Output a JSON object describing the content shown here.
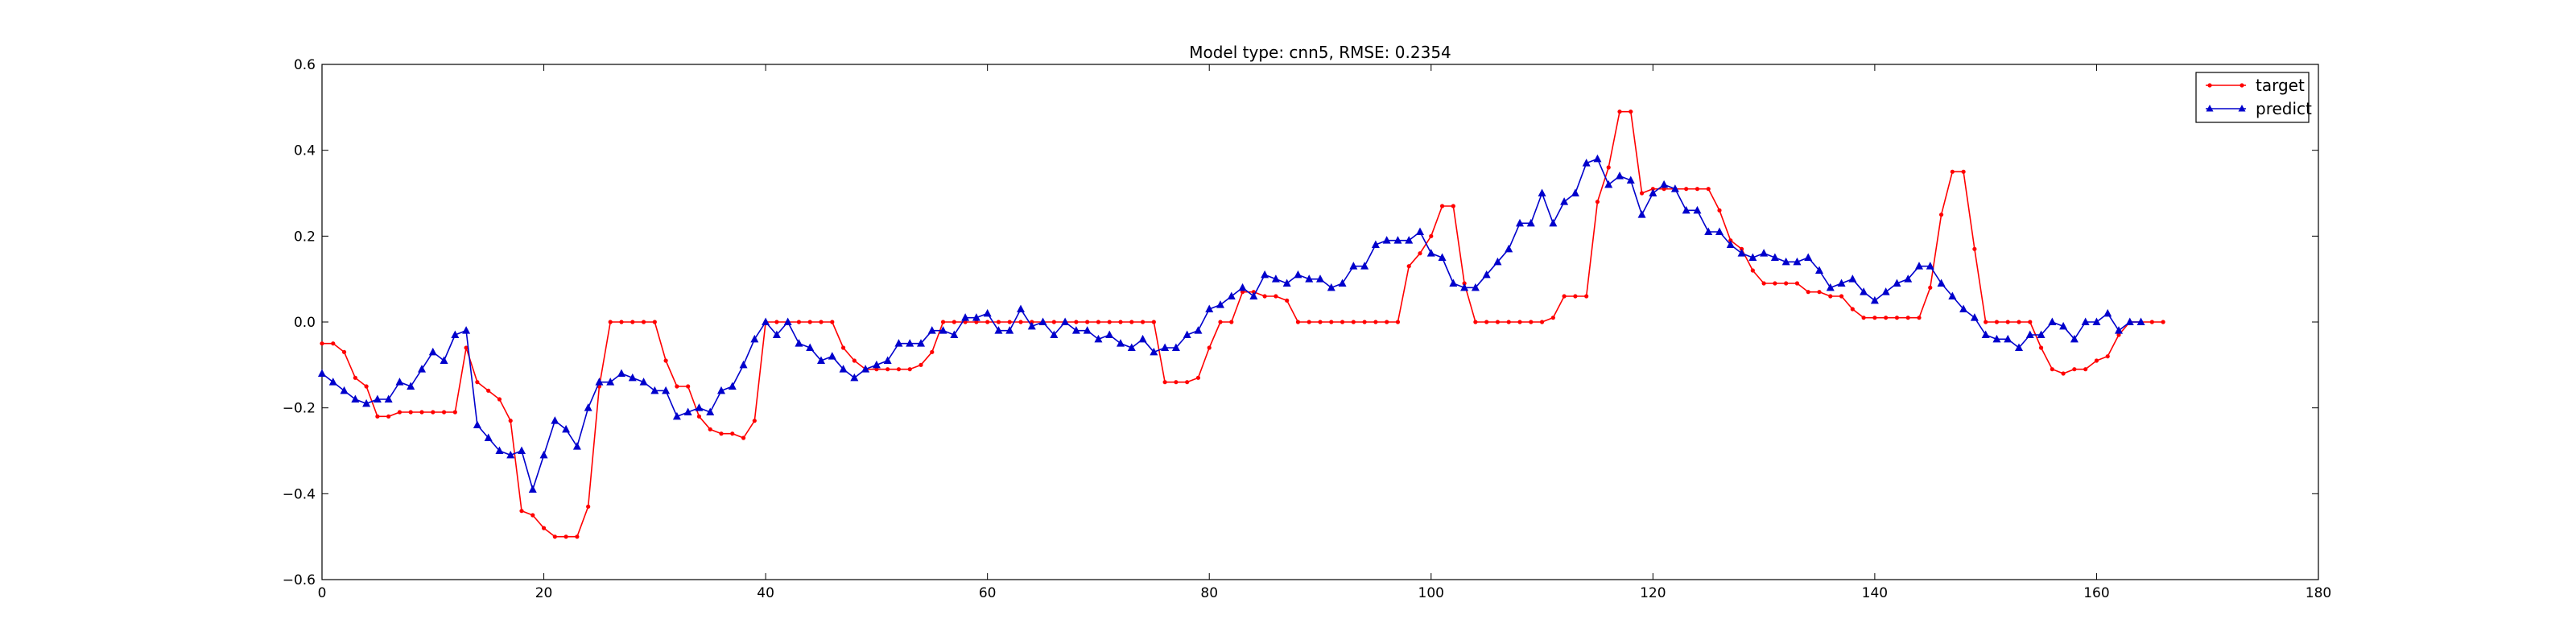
{
  "chart_data": {
    "type": "line",
    "title": "Model type: cnn5, RMSE: 0.2354",
    "xlabel": "",
    "ylabel": "",
    "xlim": [
      0,
      180
    ],
    "ylim": [
      -0.6,
      0.6
    ],
    "xticks": [
      0,
      20,
      40,
      60,
      80,
      100,
      120,
      140,
      160,
      180
    ],
    "yticks": [
      -0.6,
      -0.4,
      -0.2,
      0.0,
      0.2,
      0.4,
      0.6
    ],
    "xtick_labels": [
      "0",
      "20",
      "40",
      "60",
      "80",
      "100",
      "120",
      "140",
      "160",
      "180"
    ],
    "ytick_labels": [
      "−0.6",
      "−0.4",
      "−0.2",
      "0.0",
      "0.2",
      "0.4",
      "0.6"
    ],
    "grid": false,
    "legend_position": "top-right",
    "series": [
      {
        "name": "target",
        "color": "#ff0000",
        "marker": "dot",
        "values": [
          -0.05,
          -0.05,
          -0.07,
          -0.13,
          -0.15,
          -0.22,
          -0.22,
          -0.21,
          -0.21,
          -0.21,
          -0.21,
          -0.21,
          -0.21,
          -0.06,
          -0.14,
          -0.16,
          -0.18,
          -0.23,
          -0.44,
          -0.45,
          -0.48,
          -0.5,
          -0.5,
          -0.5,
          -0.43,
          -0.15,
          0.0,
          0.0,
          0.0,
          0.0,
          0.0,
          -0.09,
          -0.15,
          -0.15,
          -0.22,
          -0.25,
          -0.26,
          -0.26,
          -0.27,
          -0.23,
          0.0,
          0.0,
          0.0,
          0.0,
          0.0,
          0.0,
          0.0,
          -0.06,
          -0.09,
          -0.11,
          -0.11,
          -0.11,
          -0.11,
          -0.11,
          -0.1,
          -0.07,
          0.0,
          0.0,
          0.0,
          0.0,
          0.0,
          0.0,
          0.0,
          0.0,
          0.0,
          0.0,
          0.0,
          0.0,
          0.0,
          0.0,
          0.0,
          0.0,
          0.0,
          0.0,
          0.0,
          0.0,
          -0.14,
          -0.14,
          -0.14,
          -0.13,
          -0.06,
          0.0,
          0.0,
          0.07,
          0.07,
          0.06,
          0.06,
          0.05,
          0.0,
          0.0,
          0.0,
          0.0,
          0.0,
          0.0,
          0.0,
          0.0,
          0.0,
          0.0,
          0.13,
          0.16,
          0.2,
          0.27,
          0.27,
          0.09,
          0.0,
          0.0,
          0.0,
          0.0,
          0.0,
          0.0,
          0.0,
          0.01,
          0.06,
          0.06,
          0.06,
          0.28,
          0.36,
          0.49,
          0.49,
          0.3,
          0.31,
          0.31,
          0.31,
          0.31,
          0.31,
          0.31,
          0.26,
          0.19,
          0.17,
          0.12,
          0.09,
          0.09,
          0.09,
          0.09,
          0.07,
          0.07,
          0.06,
          0.06,
          0.03,
          0.01,
          0.01,
          0.01,
          0.01,
          0.01,
          0.01,
          0.08,
          0.25,
          0.35,
          0.35,
          0.17,
          0.0,
          0.0,
          0.0,
          0.0,
          0.0,
          -0.06,
          -0.11,
          -0.12,
          -0.11,
          -0.11,
          -0.09,
          -0.08,
          -0.03,
          0.0,
          0.0,
          0.0,
          0.0
        ]
      },
      {
        "name": "predict",
        "color": "#0000cc",
        "marker": "triangle",
        "values": [
          -0.12,
          -0.14,
          -0.16,
          -0.18,
          -0.19,
          -0.18,
          -0.18,
          -0.14,
          -0.15,
          -0.11,
          -0.07,
          -0.09,
          -0.03,
          -0.02,
          -0.24,
          -0.27,
          -0.3,
          -0.31,
          -0.3,
          -0.39,
          -0.31,
          -0.23,
          -0.25,
          -0.29,
          -0.2,
          -0.14,
          -0.14,
          -0.12,
          -0.13,
          -0.14,
          -0.16,
          -0.16,
          -0.22,
          -0.21,
          -0.2,
          -0.21,
          -0.16,
          -0.15,
          -0.1,
          -0.04,
          0.0,
          -0.03,
          0.0,
          -0.05,
          -0.06,
          -0.09,
          -0.08,
          -0.11,
          -0.13,
          -0.11,
          -0.1,
          -0.09,
          -0.05,
          -0.05,
          -0.05,
          -0.02,
          -0.02,
          -0.03,
          0.01,
          0.01,
          0.02,
          -0.02,
          -0.02,
          0.03,
          -0.01,
          0.0,
          -0.03,
          0.0,
          -0.02,
          -0.02,
          -0.04,
          -0.03,
          -0.05,
          -0.06,
          -0.04,
          -0.07,
          -0.06,
          -0.06,
          -0.03,
          -0.02,
          0.03,
          0.04,
          0.06,
          0.08,
          0.06,
          0.11,
          0.1,
          0.09,
          0.11,
          0.1,
          0.1,
          0.08,
          0.09,
          0.13,
          0.13,
          0.18,
          0.19,
          0.19,
          0.19,
          0.21,
          0.16,
          0.15,
          0.09,
          0.08,
          0.08,
          0.11,
          0.14,
          0.17,
          0.23,
          0.23,
          0.3,
          0.23,
          0.28,
          0.3,
          0.37,
          0.38,
          0.32,
          0.34,
          0.33,
          0.25,
          0.3,
          0.32,
          0.31,
          0.26,
          0.26,
          0.21,
          0.21,
          0.18,
          0.16,
          0.15,
          0.16,
          0.15,
          0.14,
          0.14,
          0.15,
          0.12,
          0.08,
          0.09,
          0.1,
          0.07,
          0.05,
          0.07,
          0.09,
          0.1,
          0.13,
          0.13,
          0.09,
          0.06,
          0.03,
          0.01,
          -0.03,
          -0.04,
          -0.04,
          -0.06,
          -0.03,
          -0.03,
          0.0,
          -0.01,
          -0.04,
          0.0,
          0.0,
          0.02,
          -0.02,
          0.0,
          0.0
        ]
      }
    ]
  }
}
